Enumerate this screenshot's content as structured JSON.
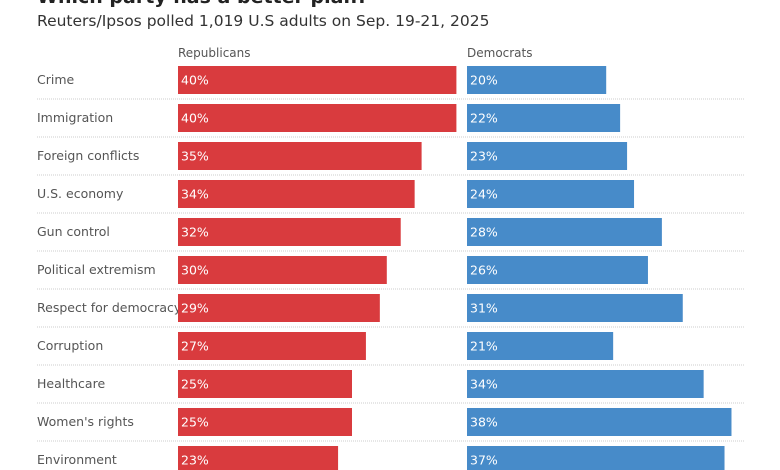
{
  "chart_data": {
    "type": "bar",
    "title": "Which party has a better plan?",
    "subtitle": "Reuters/Ipsos polled 1,019 U.S adults on Sep. 19-21, 2025",
    "categories": [
      "Crime",
      "Immigration",
      "Foreign conflicts",
      "U.S. economy",
      "Gun control",
      "Political extremism",
      "Respect for democracy",
      "Corruption",
      "Healthcare",
      "Women's rights",
      "Environment"
    ],
    "series": [
      {
        "name": "Republicans",
        "color": "#d93b3e",
        "values": [
          40,
          40,
          35,
          34,
          32,
          30,
          29,
          27,
          25,
          25,
          23
        ]
      },
      {
        "name": "Democrats",
        "color": "#478bc9",
        "values": [
          20,
          22,
          23,
          24,
          28,
          26,
          31,
          21,
          34,
          38,
          37
        ]
      }
    ],
    "value_suffix": "%",
    "grid": false
  }
}
